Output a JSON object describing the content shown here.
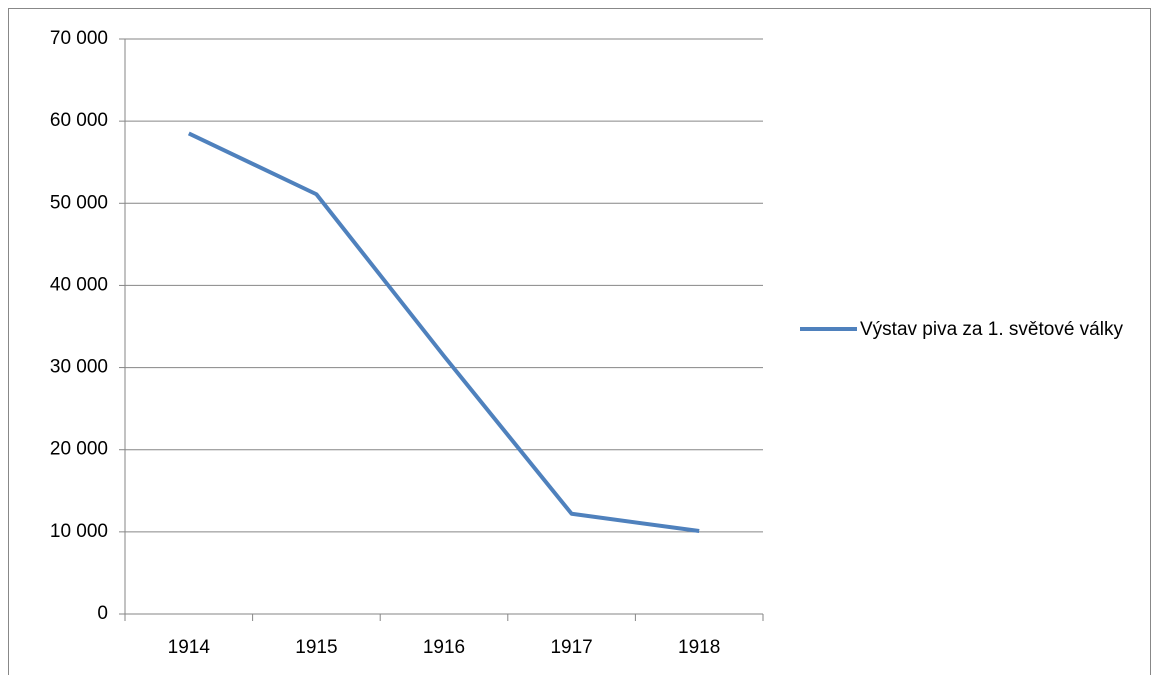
{
  "chart_data": {
    "type": "line",
    "categories": [
      "1914",
      "1915",
      "1916",
      "1917",
      "1918"
    ],
    "series": [
      {
        "name": "Výstav piva za 1. světové války",
        "color": "#4f81bd",
        "values": [
          58500,
          51100,
          31400,
          12200,
          10100
        ]
      }
    ],
    "ylim": [
      0,
      70000
    ],
    "yticks": [
      0,
      {
        "value": 10000,
        "label": "10 000"
      },
      {
        "value": 20000,
        "label": "20 000"
      },
      {
        "value": 30000,
        "label": "30 000"
      },
      {
        "value": 40000,
        "label": "40 000"
      },
      {
        "value": 50000,
        "label": "50 000"
      },
      {
        "value": 60000,
        "label": "60 000"
      },
      {
        "value": 70000,
        "label": "70 000"
      }
    ],
    "grid": true,
    "legend": "right"
  }
}
